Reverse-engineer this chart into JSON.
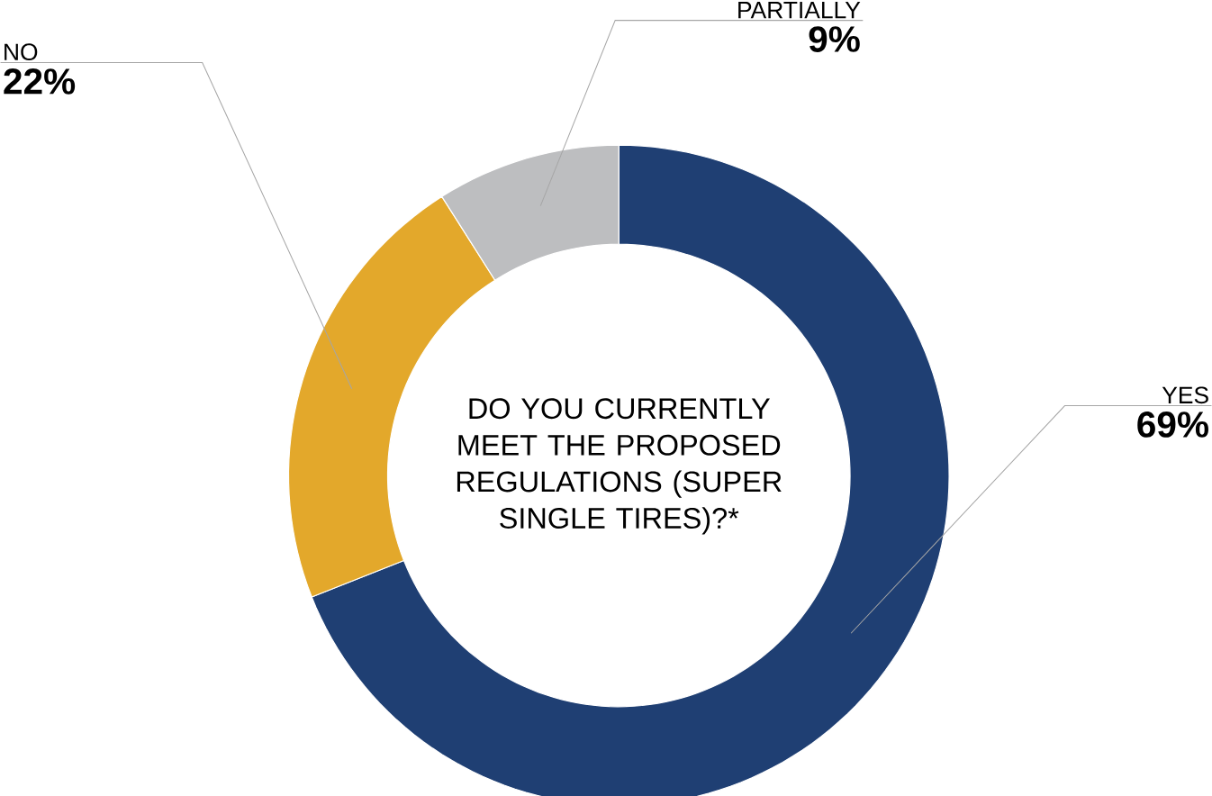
{
  "chart_data": {
    "type": "donut",
    "title": "DO YOU CURRENTLY MEET THE PROPOSED REGULATIONS (SUPER SINGLE TIRES)?*",
    "categories": [
      "YES",
      "NO",
      "PARTIALLY"
    ],
    "values": [
      69,
      22,
      9
    ],
    "value_labels": [
      "69%",
      "22%",
      "9%"
    ],
    "colors": [
      "#1f3f73",
      "#e3a82b",
      "#bdbec0"
    ]
  }
}
